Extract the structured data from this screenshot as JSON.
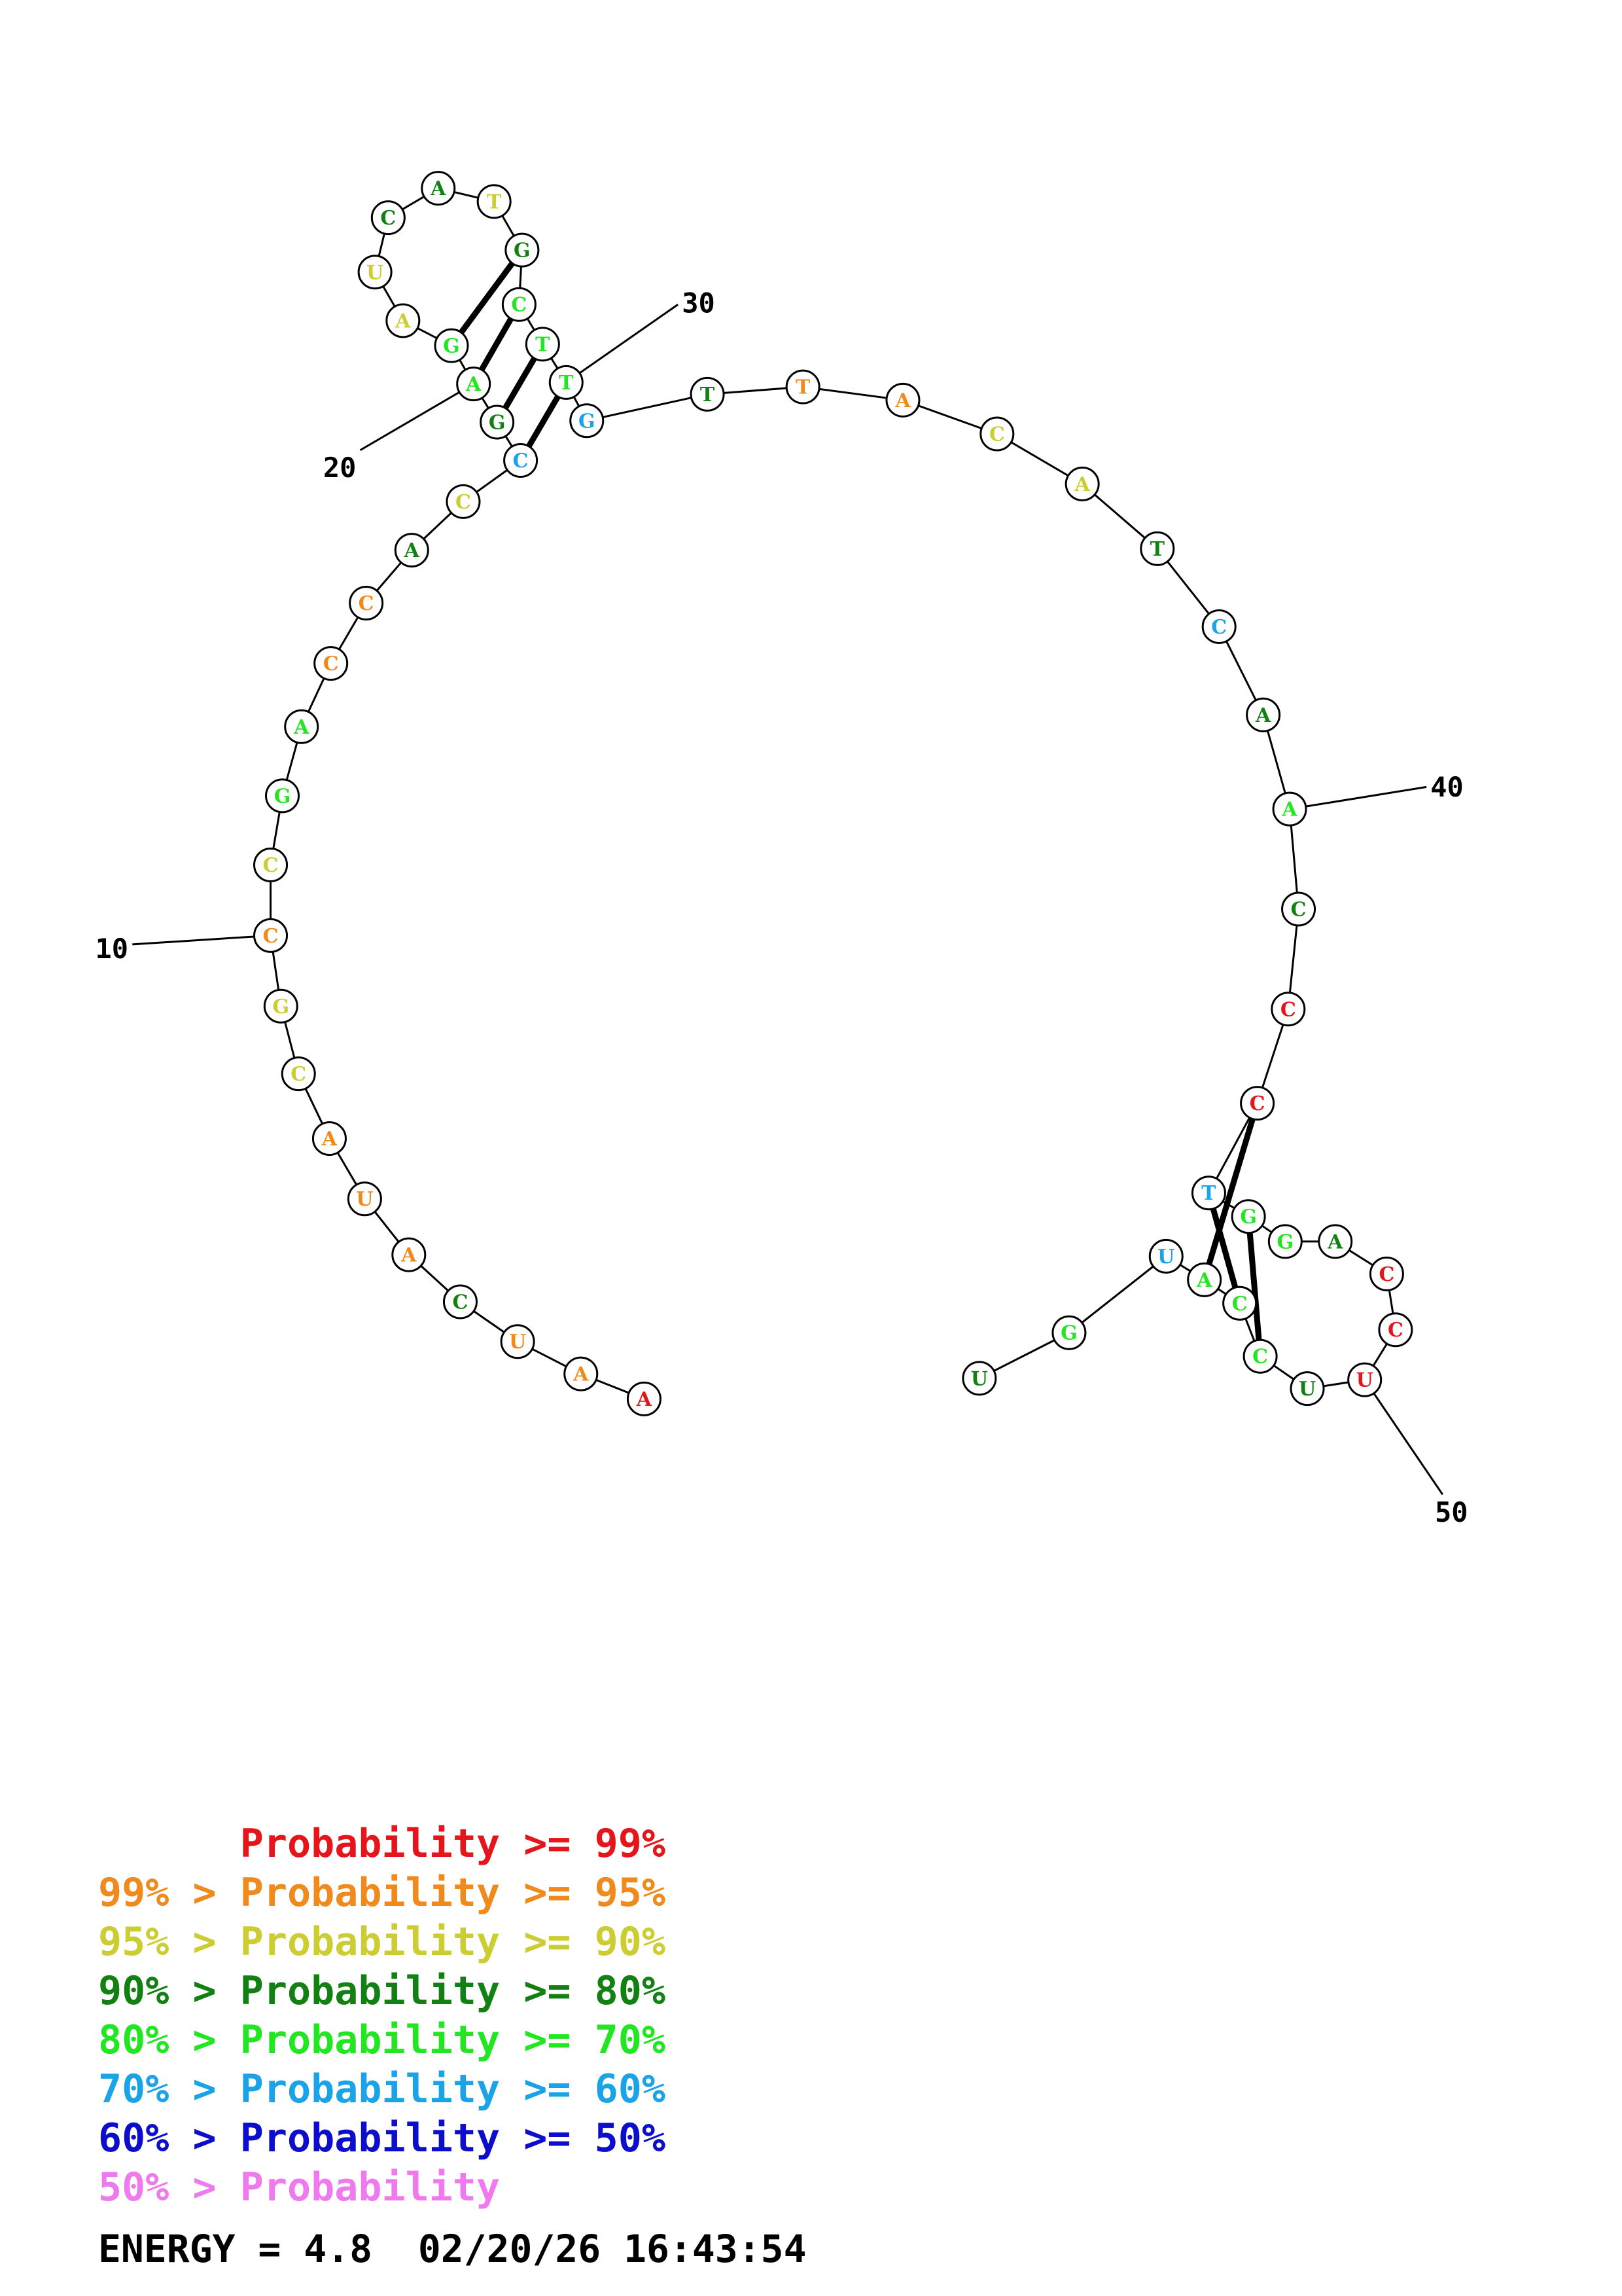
{
  "structure": {
    "sequence": [
      "A",
      "A",
      "U",
      "C",
      "A",
      "U",
      "A",
      "C",
      "G",
      "C",
      "C",
      "G",
      "A",
      "C",
      "C",
      "A",
      "C",
      "C",
      "G",
      "A",
      "G",
      "A",
      "U",
      "C",
      "A",
      "T",
      "G",
      "C",
      "T",
      "T",
      "G",
      "T",
      "T",
      "A",
      "C",
      "A",
      "T",
      "C",
      "A",
      "A",
      "C",
      "C",
      "C",
      "T",
      "G",
      "G",
      "A",
      "C",
      "C",
      "U",
      "U",
      "C",
      "C",
      "A",
      "U",
      "G",
      "U"
    ],
    "probability_classes": [
      0,
      1,
      1,
      3,
      1,
      1,
      1,
      2,
      2,
      1,
      2,
      4,
      4,
      1,
      1,
      3,
      2,
      5,
      3,
      4,
      4,
      2,
      2,
      3,
      3,
      2,
      3,
      4,
      4,
      4,
      5,
      3,
      1,
      1,
      2,
      2,
      3,
      5,
      3,
      4,
      3,
      0,
      0,
      5,
      4,
      4,
      3,
      0,
      0,
      0,
      3,
      4,
      4,
      4,
      5,
      4,
      3
    ],
    "pairs": [
      [
        18,
        30
      ],
      [
        19,
        29
      ],
      [
        20,
        28
      ],
      [
        21,
        27
      ],
      [
        43,
        54
      ],
      [
        44,
        53
      ],
      [
        45,
        52
      ]
    ],
    "index_labels": [
      {
        "index": 10,
        "text": "10"
      },
      {
        "index": 20,
        "text": "20"
      },
      {
        "index": 30,
        "text": "30"
      },
      {
        "index": 40,
        "text": "40"
      },
      {
        "index": 50,
        "text": "50"
      }
    ]
  },
  "colors": {
    "classes": [
      "#e4161b",
      "#f08a1c",
      "#cccc33",
      "#138013",
      "#22e622",
      "#1aa3e6",
      "#0d0dcc",
      "#ee7aee"
    ],
    "line": "#000000",
    "circle_fill": "#ffffff"
  },
  "legend": [
    {
      "text": "      Probability >= 99%",
      "class": 0
    },
    {
      "text": "99% > Probability >= 95%",
      "class": 1
    },
    {
      "text": "95% > Probability >= 90%",
      "class": 2
    },
    {
      "text": "90% > Probability >= 80%",
      "class": 3
    },
    {
      "text": "80% > Probability >= 70%",
      "class": 4
    },
    {
      "text": "70% > Probability >= 60%",
      "class": 5
    },
    {
      "text": "60% > Probability >= 50%",
      "class": 6
    },
    {
      "text": "50% > Probability",
      "class": 7
    }
  ],
  "energy": "ENERGY = 4.8  02/20/26 16:43:54"
}
